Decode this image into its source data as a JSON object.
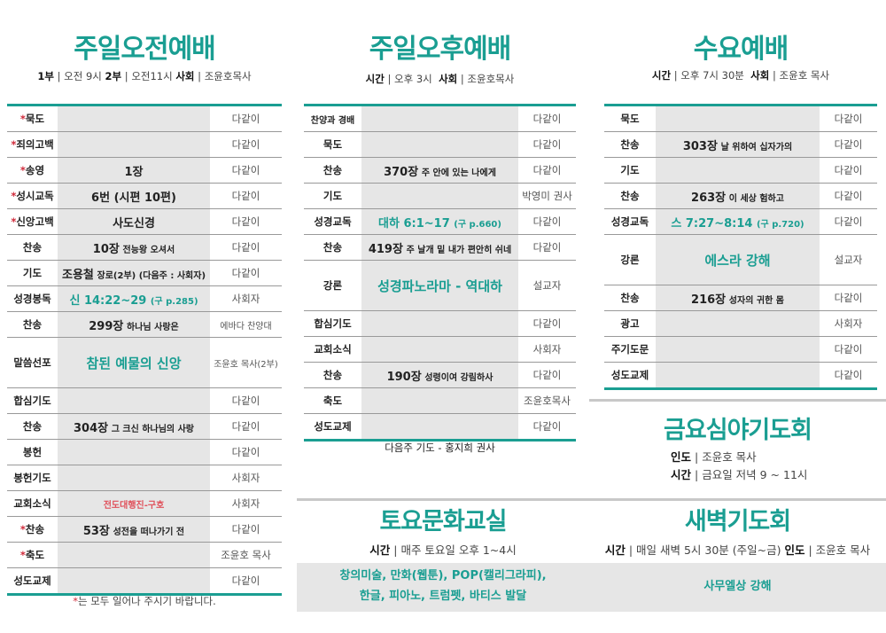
{
  "colors": {
    "accent": "#1a9e92",
    "star": "#d02a3a",
    "red_note": "#e0505a",
    "shade": "#e6e6e6"
  },
  "morning": {
    "title": "주일오전예배",
    "info": [
      {
        "k": "1부",
        "v": "오전 9시"
      },
      {
        "k": "2부",
        "v": "오전11시"
      },
      {
        "k": "사회",
        "v": "조윤호목사"
      }
    ],
    "rows": [
      {
        "label": "묵도",
        "star": true,
        "right": "다같이"
      },
      {
        "label": "죄의고백",
        "star": true,
        "right": "다같이"
      },
      {
        "label": "송영",
        "star": true,
        "main": "1장",
        "right": "다같이"
      },
      {
        "label": "성시교독",
        "star": true,
        "main": "6번 (시편 10편)",
        "right": "다같이"
      },
      {
        "label": "신앙고백",
        "star": true,
        "main": "사도신경",
        "right": "다같이"
      },
      {
        "label": "찬송",
        "main": "10장",
        "sub": "전능왕 오셔서",
        "right": "다같이"
      },
      {
        "label": "기도",
        "main": "조용철",
        "sub": "장로(2부)  (다음주 : 사회자)",
        "right": "다같이"
      },
      {
        "label": "성경봉독",
        "green": "신 14:22~29",
        "green_sub": "(구 p.285)",
        "right": "사회자"
      },
      {
        "label": "찬송",
        "main": "299장",
        "sub": "하나님 사랑은",
        "right": "에바다 찬양대"
      },
      {
        "label": "말씀선포",
        "tall": true,
        "big": "참된 예물의 신앙",
        "right": "조윤호 목사(2부)"
      },
      {
        "label": "합심기도",
        "right": "다같이"
      },
      {
        "label": "찬송",
        "main": "304장",
        "sub": "그 크신 하나님의 사랑",
        "right": "다같이"
      },
      {
        "label": "봉헌",
        "right": "다같이"
      },
      {
        "label": "봉헌기도",
        "right": "사회자"
      },
      {
        "label": "교회소식",
        "red": "전도대행진-구호",
        "right": "사회자"
      },
      {
        "label": "찬송",
        "star": true,
        "main": "53장",
        "sub": "성전을 떠나가기 전",
        "right": "다같이"
      },
      {
        "label": "축도",
        "star": true,
        "right": "조윤호 목사"
      },
      {
        "label": "성도교제",
        "right": "다같이"
      }
    ],
    "note_star": "*",
    "note": "는 모두 일어나 주시기 바랍니다."
  },
  "afternoon": {
    "title": "주일오후예배",
    "info": [
      {
        "k": "시간",
        "v": "오후 3시"
      },
      {
        "k": "사회",
        "v": "조윤호목사"
      }
    ],
    "rows": [
      {
        "label": "찬양과 경배",
        "right": "다같이"
      },
      {
        "label": "묵도",
        "right": "다같이"
      },
      {
        "label": "찬송",
        "main": "370장",
        "sub": "주 안에 있는 나에게",
        "right": "다같이"
      },
      {
        "label": "기도",
        "right": "박영미 권사"
      },
      {
        "label": "성경교독",
        "green": "대하 6:1~17",
        "green_sub": "(구 p.660)",
        "right": "다같이"
      },
      {
        "label": "찬송",
        "main": "419장",
        "sub": "주 날개 밑 내가 편안히 쉬네",
        "right": "다같이"
      },
      {
        "label": "강론",
        "tall": true,
        "big": "성경파노라마 - 역대하",
        "right": "설교자"
      },
      {
        "label": "합심기도",
        "right": "다같이"
      },
      {
        "label": "교회소식",
        "right": "사회자"
      },
      {
        "label": "찬송",
        "main": "190장",
        "sub": "성령이여 강림하사",
        "right": "다같이"
      },
      {
        "label": "축도",
        "right": "조윤호목사"
      },
      {
        "label": "성도교제",
        "right": "다같이"
      }
    ],
    "note": "다음주 기도 - 홍지희 권사"
  },
  "wednesday": {
    "title": "수요예배",
    "info": [
      {
        "k": "시간",
        "v": "오후 7시 30분"
      },
      {
        "k": "사회",
        "v": "조윤호 목사"
      }
    ],
    "rows": [
      {
        "label": "묵도",
        "right": "다같이"
      },
      {
        "label": "찬송",
        "main": "303장",
        "sub": "날 위하여 십자가의",
        "right": "다같이"
      },
      {
        "label": "기도",
        "right": "다같이"
      },
      {
        "label": "찬송",
        "main": "263장",
        "sub": "이 세상 험하고",
        "right": "다같이"
      },
      {
        "label": "성경교독",
        "green": "스 7:27~8:14",
        "green_sub": "(구 p.720)",
        "right": "다같이"
      },
      {
        "label": "강론",
        "tall": true,
        "big": "에스라 강해",
        "right": "설교자"
      },
      {
        "label": "찬송",
        "main": "216장",
        "sub": "성자의 귀한 몸",
        "right": "다같이"
      },
      {
        "label": "광고",
        "right": "사회자"
      },
      {
        "label": "주기도문",
        "right": "다같이"
      },
      {
        "label": "성도교제",
        "right": "다같이"
      }
    ]
  },
  "friday": {
    "title": "금요심야기도회",
    "lines": [
      {
        "k": "인도",
        "v": "조윤호 목사"
      },
      {
        "k": "시간",
        "v": "금요일 저녁 9 ~ 11시"
      }
    ]
  },
  "saturday": {
    "title": "토요문화교실",
    "info": {
      "k": "시간",
      "v": "매주 토요일 오후 1~4시"
    },
    "classes": [
      "창의미술, 만화(웹툰), POP(캘리그라피),",
      "한글, 피아노, 트럼펫, 바티스 발달"
    ]
  },
  "dawn": {
    "title": "새벽기도회",
    "info": [
      {
        "k": "시간",
        "v": "매일 새벽 5시 30분 (주일~금)"
      },
      {
        "k": "인도",
        "v": "조윤호 목사"
      }
    ],
    "topic": "사무엘상 강해"
  }
}
